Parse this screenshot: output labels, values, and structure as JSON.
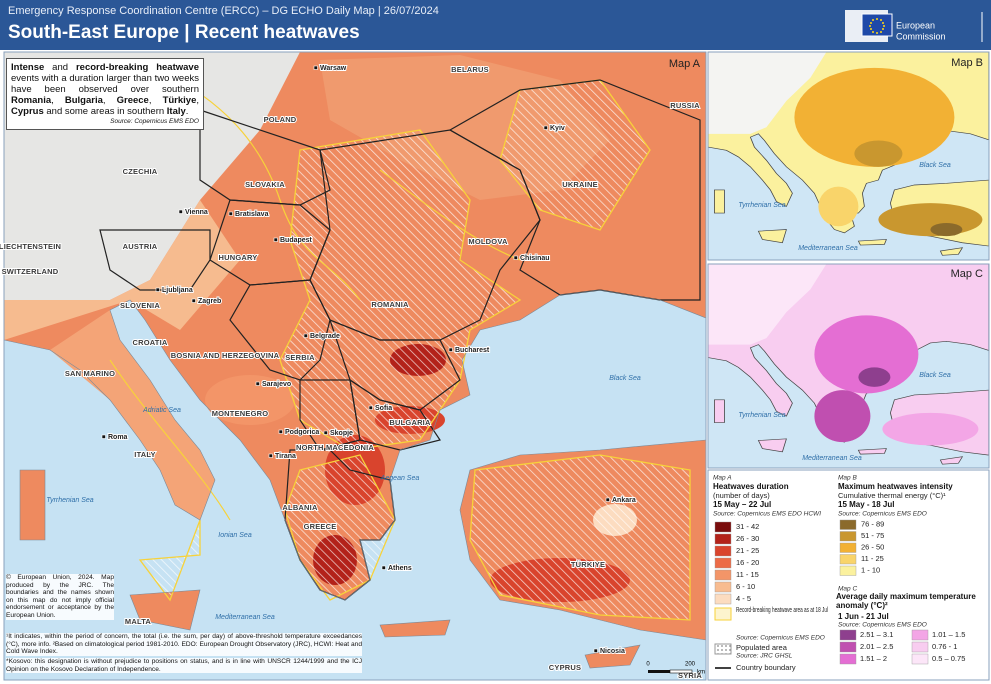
{
  "header": {
    "agency": "Emergency Response Coordination Centre (ERCC) – DG ECHO Daily Map | 26/07/2024",
    "title": "South-East Europe | Recent heatwaves"
  },
  "logo": {
    "line1": "European",
    "line2": "Commission"
  },
  "maps": {
    "a": {
      "label": "Map A",
      "countries": [
        "POLAND",
        "CZECHIA",
        "SLOVAKIA",
        "AUSTRIA",
        "HUNGARY",
        "SLOVENIA",
        "CROATIA",
        "BOSNIA AND HERZEGOVINA",
        "SERBIA",
        "ROMANIA",
        "MOLDOVA",
        "UKRAINE",
        "BULGARIA",
        "MONTENEGRO",
        "NORTH MACEDONIA",
        "ALBANIA",
        "GREECE",
        "ITALY",
        "TÜRKIYE",
        "CYPRUS",
        "MALTA",
        "BELARUS",
        "RUSSIA",
        "LIECHTENSTEIN",
        "SWITZERLAND",
        "SAN MARINO",
        "SYRIA"
      ],
      "cities": [
        "Warsaw",
        "Kyiv",
        "Vienna",
        "Bratislava",
        "Budapest",
        "Chisinau",
        "Ljubljana",
        "Zagreb",
        "Belgrade",
        "Bucharest",
        "Sarajevo",
        "Podgorica",
        "Sofia",
        "Skopje",
        "Tirana",
        "Roma",
        "Athens",
        "Ankara",
        "Nicosia"
      ],
      "seas": [
        "Black Sea",
        "Adriatic Sea",
        "Tyrrhenian Sea",
        "Ionian Sea",
        "Aegean Sea",
        "Mediterranean Sea"
      ]
    },
    "b": {
      "label": "Map B",
      "seas": [
        "Black Sea",
        "Tyrrhenian Sea",
        "Mediterranean Sea"
      ]
    },
    "c": {
      "label": "Map C",
      "seas": [
        "Black Sea",
        "Tyrrhenian Sea",
        "Mediterranean Sea"
      ]
    }
  },
  "summary": {
    "parts": [
      "Intense",
      " and ",
      "record-breaking heatwave",
      " events with a duration larger than two weeks have been observed over southern ",
      "Romania",
      ", ",
      "Bulgaria",
      ", ",
      "Greece",
      ", ",
      "Türkiye",
      ", ",
      "Cyprus",
      " and some areas in southern ",
      "Italy",
      "."
    ],
    "source": "Source: Copernicus EMS EDO"
  },
  "legend_a": {
    "map": "Map A",
    "title": "Heatwaves duration",
    "unit": "(number of days)",
    "period": "15 May – 22 Jul",
    "source": "Source: Copernicus EMS EDO HCWI",
    "items": [
      {
        "label": "31 - 42",
        "color": "#7a0d0d"
      },
      {
        "label": "26 - 30",
        "color": "#b3221a"
      },
      {
        "label": "21 - 25",
        "color": "#d9442d"
      },
      {
        "label": "16 - 20",
        "color": "#ec6b47"
      },
      {
        "label": "11 - 15",
        "color": "#f39568"
      },
      {
        "label": "6 - 10",
        "color": "#f8bc90"
      },
      {
        "label": "4 - 5",
        "color": "#fcdcc0"
      }
    ],
    "record": "Record-breaking heatwave area as at 18 Jul",
    "record_source": "Source: Copernicus EMS EDO",
    "populated": "Populated area",
    "populated_source": "Source: JRC GHSL",
    "boundary": "Country boundary"
  },
  "legend_b": {
    "map": "Map B",
    "title": "Maximum heatwaves intensity",
    "unit": "Cumulative thermal energy (°C)¹",
    "period": "15 May - 18 Jul",
    "source": "Source: Copernicus EMS EDO",
    "items": [
      {
        "label": "76 - 89",
        "color": "#8b6a2b"
      },
      {
        "label": "51 - 75",
        "color": "#c9972f"
      },
      {
        "label": "26 - 50",
        "color": "#f2b134"
      },
      {
        "label": "11 - 25",
        "color": "#f9d46a"
      },
      {
        "label": "1 - 10",
        "color": "#fbf19e"
      }
    ]
  },
  "legend_c": {
    "map": "Map C",
    "title": "Average daily maximum temperature anomaly (°C)²",
    "period": "1 Jun - 21 Jul",
    "source": "Source: Copernicus EMS EDO",
    "items": [
      {
        "label": "2.51 – 3.1",
        "color": "#8e3f8e"
      },
      {
        "label": "2.01 – 2.5",
        "color": "#c04fb0"
      },
      {
        "label": "1.51 – 2",
        "color": "#e46ed3"
      },
      {
        "label": "1.01 – 1.5",
        "color": "#f3a6e6"
      },
      {
        "label": "0.76 - 1",
        "color": "#f8cdf0"
      },
      {
        "label": "0.5 – 0.75",
        "color": "#fce6f8"
      }
    ]
  },
  "scale": {
    "start": "0",
    "end": "200",
    "unit": "km"
  },
  "footer": {
    "copyright": "© European Union, 2024. Map produced by the JRC. The boundaries and the names shown on this map do not imply official endorsement or acceptance by the European Union.",
    "notes": "¹It indicates, within the period of concern, the total (i.e. the sum, per day) of above-threshold temperature exceedances (°C), more info. ²Based on climatological period 1981-2010. EDO: European Drought Observatory (JRC), HCWI: Heat and Cold Wave Index.",
    "kosovo": "*Kosovo: this designation is without prejudice to positions on status, and is in line with UNSCR 1244/1999 and the ICJ Opinion on the Kosovo Declaration of Independence."
  }
}
